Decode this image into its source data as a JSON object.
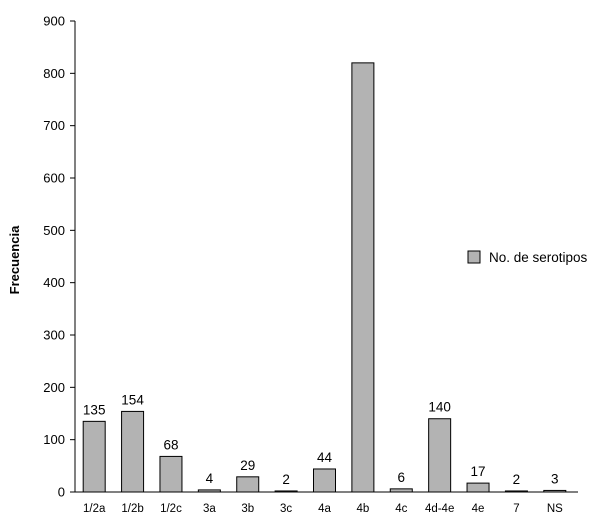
{
  "chart_data": {
    "type": "bar",
    "categories": [
      "1/2a",
      "1/2b",
      "1/2c",
      "3a",
      "3b",
      "3c",
      "4a",
      "4b",
      "4c",
      "4d-4e",
      "4e",
      "7",
      "NS"
    ],
    "series": [
      {
        "name": "No. de serotipos",
        "values": [
          135,
          154,
          68,
          4,
          29,
          2,
          44,
          820,
          6,
          140,
          17,
          2,
          3
        ],
        "color": "#b3b3b3"
      }
    ],
    "data_labels": [
      "135",
      "154",
      "68",
      "4",
      "29",
      "2",
      "44",
      "",
      "6",
      "140",
      "17",
      "2",
      "3"
    ],
    "ylabel": "Frecuencia",
    "xlabel": "",
    "ylim": [
      0,
      900
    ],
    "yticks": [
      0,
      100,
      200,
      300,
      400,
      500,
      600,
      700,
      800,
      900
    ],
    "grid": false,
    "legend_position": "right",
    "bar_edge_color": "#000000"
  }
}
